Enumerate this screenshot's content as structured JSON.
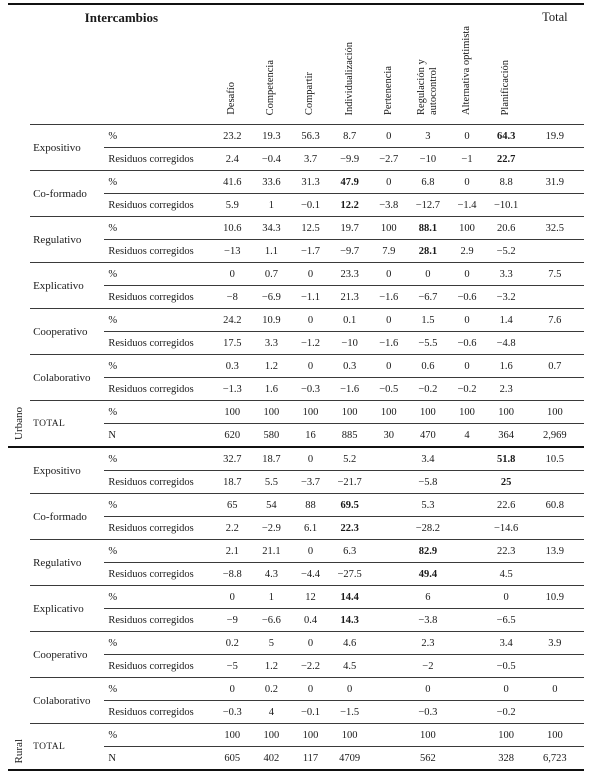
{
  "header": {
    "title": "Intercambios",
    "total_label": "Total",
    "columns": [
      "Desafío",
      "Competencia",
      "Compartir",
      "Individualización",
      "Pertenencia",
      "Regulación y autocontrol",
      "Alternativa optimista",
      "Planificación"
    ]
  },
  "sections": [
    {
      "label": "Urbano",
      "categories": [
        {
          "name": "Expositivo",
          "rows": [
            {
              "label": "%",
              "values": [
                "23.2",
                "19.3",
                "56.3",
                "8.7",
                "0",
                "3",
                "0",
                "64.3"
              ],
              "bold": [
                7
              ],
              "total": "19.9"
            },
            {
              "label": "Residuos corregidos",
              "values": [
                "2.4",
                "−0.4",
                "3.7",
                "−9.9",
                "−2.7",
                "−10",
                "−1",
                "22.7"
              ],
              "bold": [
                7
              ],
              "total": ""
            }
          ]
        },
        {
          "name": "Co-formado",
          "rows": [
            {
              "label": "%",
              "values": [
                "41.6",
                "33.6",
                "31.3",
                "47.9",
                "0",
                "6.8",
                "0",
                "8.8"
              ],
              "bold": [
                3
              ],
              "total": "31.9"
            },
            {
              "label": "Residuos corregidos",
              "values": [
                "5.9",
                "1",
                "−0.1",
                "12.2",
                "−3.8",
                "−12.7",
                "−1.4",
                "−10.1"
              ],
              "bold": [
                3
              ],
              "total": ""
            }
          ]
        },
        {
          "name": "Regulativo",
          "rows": [
            {
              "label": "%",
              "values": [
                "10.6",
                "34.3",
                "12.5",
                "19.7",
                "100",
                "88.1",
                "100",
                "20.6"
              ],
              "bold": [
                5
              ],
              "total": "32.5"
            },
            {
              "label": "Residuos corregidos",
              "values": [
                "−13",
                "1.1",
                "−1.7",
                "−9.7",
                "7.9",
                "28.1",
                "2.9",
                "−5.2"
              ],
              "bold": [
                5
              ],
              "total": ""
            }
          ]
        },
        {
          "name": "Explicativo",
          "rows": [
            {
              "label": "%",
              "values": [
                "0",
                "0.7",
                "0",
                "23.3",
                "0",
                "0",
                "0",
                "3.3"
              ],
              "bold": [],
              "total": "7.5"
            },
            {
              "label": "Residuos corregidos",
              "values": [
                "−8",
                "−6.9",
                "−1.1",
                "21.3",
                "−1.6",
                "−6.7",
                "−0.6",
                "−3.2"
              ],
              "bold": [],
              "total": ""
            }
          ]
        },
        {
          "name": "Cooperativo",
          "rows": [
            {
              "label": "%",
              "values": [
                "24.2",
                "10.9",
                "0",
                "0.1",
                "0",
                "1.5",
                "0",
                "1.4"
              ],
              "bold": [],
              "total": "7.6"
            },
            {
              "label": "Residuos corregidos",
              "values": [
                "17.5",
                "3.3",
                "−1.2",
                "−10",
                "−1.6",
                "−5.5",
                "−0.6",
                "−4.8"
              ],
              "bold": [],
              "total": ""
            }
          ]
        },
        {
          "name": "Colaborativo",
          "rows": [
            {
              "label": "%",
              "values": [
                "0.3",
                "1.2",
                "0",
                "0.3",
                "0",
                "0.6",
                "0",
                "1.6"
              ],
              "bold": [],
              "total": "0.7"
            },
            {
              "label": "Residuos corregidos",
              "values": [
                "−1.3",
                "1.6",
                "−0.3",
                "−1.6",
                "−0.5",
                "−0.2",
                "−0.2",
                "2.3"
              ],
              "bold": [],
              "total": ""
            }
          ]
        },
        {
          "name": "TOTAL",
          "rows": [
            {
              "label": "%",
              "values": [
                "100",
                "100",
                "100",
                "100",
                "100",
                "100",
                "100",
                "100"
              ],
              "bold": [],
              "total": "100"
            },
            {
              "label": "N",
              "values": [
                "620",
                "580",
                "16",
                "885",
                "30",
                "470",
                "4",
                "364"
              ],
              "bold": [],
              "total": "2,969"
            }
          ]
        }
      ]
    },
    {
      "label": "Rural",
      "categories": [
        {
          "name": "Expositivo",
          "rows": [
            {
              "label": "%",
              "values": [
                "32.7",
                "18.7",
                "0",
                "5.2",
                "",
                "3.4",
                "",
                "51.8"
              ],
              "bold": [
                7
              ],
              "total": "10.5"
            },
            {
              "label": "Residuos corregidos",
              "values": [
                "18.7",
                "5.5",
                "−3.7",
                "−21.7",
                "",
                "−5.8",
                "",
                "25"
              ],
              "bold": [
                7
              ],
              "total": ""
            }
          ]
        },
        {
          "name": "Co-formado",
          "rows": [
            {
              "label": "%",
              "values": [
                "65",
                "54",
                "88",
                "69.5",
                "",
                "5.3",
                "",
                "22.6"
              ],
              "bold": [
                3
              ],
              "total": "60.8"
            },
            {
              "label": "Residuos corregidos",
              "values": [
                "2.2",
                "−2.9",
                "6.1",
                "22.3",
                "",
                "−28.2",
                "",
                "−14.6"
              ],
              "bold": [
                3
              ],
              "total": ""
            }
          ]
        },
        {
          "name": "Regulativo",
          "rows": [
            {
              "label": "%",
              "values": [
                "2.1",
                "21.1",
                "0",
                "6.3",
                "",
                "82.9",
                "",
                "22.3"
              ],
              "bold": [
                5
              ],
              "total": "13.9"
            },
            {
              "label": "Residuos corregidos",
              "values": [
                "−8.8",
                "4.3",
                "−4.4",
                "−27.5",
                "",
                "49.4",
                "",
                "4.5"
              ],
              "bold": [
                5
              ],
              "total": ""
            }
          ]
        },
        {
          "name": "Explicativo",
          "rows": [
            {
              "label": "%",
              "values": [
                "0",
                "1",
                "12",
                "14.4",
                "",
                "6",
                "",
                "0"
              ],
              "bold": [
                3
              ],
              "total": "10.9"
            },
            {
              "label": "Residuos corregidos",
              "values": [
                "−9",
                "−6.6",
                "0.4",
                "14.3",
                "",
                "−3.8",
                "",
                "−6.5"
              ],
              "bold": [
                3
              ],
              "total": ""
            }
          ]
        },
        {
          "name": "Cooperativo",
          "rows": [
            {
              "label": "%",
              "values": [
                "0.2",
                "5",
                "0",
                "4.6",
                "",
                "2.3",
                "",
                "3.4"
              ],
              "bold": [],
              "total": "3.9"
            },
            {
              "label": "Residuos corregidos",
              "values": [
                "−5",
                "1.2",
                "−2.2",
                "4.5",
                "",
                "−2",
                "",
                "−0.5"
              ],
              "bold": [],
              "total": ""
            }
          ]
        },
        {
          "name": "Colaborativo",
          "rows": [
            {
              "label": "%",
              "values": [
                "0",
                "0.2",
                "0",
                "0",
                "",
                "0",
                "",
                "0"
              ],
              "bold": [],
              "total": "0"
            },
            {
              "label": "Residuos corregidos",
              "values": [
                "−0.3",
                "4",
                "−0.1",
                "−1.5",
                "",
                "−0.3",
                "",
                "−0.2"
              ],
              "bold": [],
              "total": ""
            }
          ]
        },
        {
          "name": "TOTAL",
          "rows": [
            {
              "label": "%",
              "values": [
                "100",
                "100",
                "100",
                "100",
                "",
                "100",
                "",
                "100"
              ],
              "bold": [],
              "total": "100"
            },
            {
              "label": "N",
              "values": [
                "605",
                "402",
                "117",
                "4709",
                "",
                "562",
                "",
                "328"
              ],
              "bold": [],
              "total": "6,723"
            }
          ]
        }
      ]
    }
  ]
}
